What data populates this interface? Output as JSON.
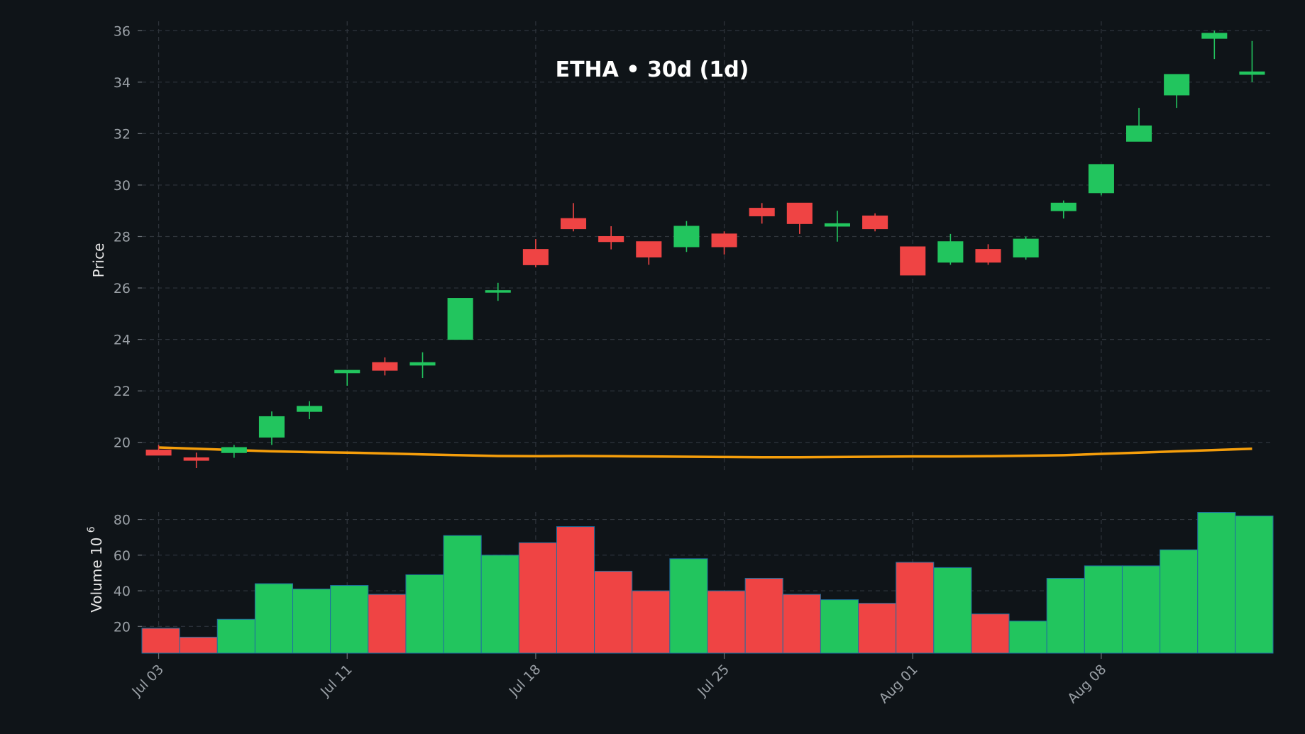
{
  "colors": {
    "background": "#0f1418",
    "up": "#22c55e",
    "down": "#ef4444",
    "ma_line": "#f59e0b",
    "grid": "#2f353c",
    "volume_edge": "#1f6fa0"
  },
  "chart_data": {
    "type": "candlestick",
    "title": "ETHA • 30d (1d)",
    "price_axis": {
      "label": "Price",
      "ylim": [
        19,
        36.2
      ],
      "ticks": [
        20,
        22,
        24,
        26,
        28,
        30,
        32,
        34,
        36
      ]
    },
    "volume_axis": {
      "label": "Volume  10",
      "exponent": "6",
      "ylim": [
        5,
        85
      ],
      "ticks": [
        20,
        40,
        60,
        80
      ]
    },
    "x_tick_labels": [
      {
        "label": "Jul 03",
        "date": "2025-07-03"
      },
      {
        "label": "Jul 11",
        "date": "2025-07-11"
      },
      {
        "label": "Jul 18",
        "date": "2025-07-18"
      },
      {
        "label": "Jul 25",
        "date": "2025-07-25"
      },
      {
        "label": "Aug 01",
        "date": "2025-08-01"
      },
      {
        "label": "Aug 08",
        "date": "2025-08-08"
      }
    ],
    "grid": true,
    "candles": [
      {
        "date": "2025-07-03",
        "open": 19.7,
        "high": 19.9,
        "low": 19.5,
        "close": 19.5,
        "volume": 19
      },
      {
        "date": "2025-07-07",
        "open": 19.4,
        "high": 19.6,
        "low": 19.0,
        "close": 19.3,
        "volume": 14
      },
      {
        "date": "2025-07-08",
        "open": 19.6,
        "high": 19.9,
        "low": 19.4,
        "close": 19.8,
        "volume": 24
      },
      {
        "date": "2025-07-09",
        "open": 20.2,
        "high": 21.2,
        "low": 19.9,
        "close": 21.0,
        "volume": 44
      },
      {
        "date": "2025-07-10",
        "open": 21.2,
        "high": 21.6,
        "low": 20.9,
        "close": 21.4,
        "volume": 41
      },
      {
        "date": "2025-07-11",
        "open": 22.7,
        "high": 22.8,
        "low": 22.2,
        "close": 22.8,
        "volume": 43
      },
      {
        "date": "2025-07-14",
        "open": 23.1,
        "high": 23.3,
        "low": 22.6,
        "close": 22.8,
        "volume": 38
      },
      {
        "date": "2025-07-15",
        "open": 23.0,
        "high": 23.5,
        "low": 22.5,
        "close": 23.1,
        "volume": 49
      },
      {
        "date": "2025-07-16",
        "open": 24.0,
        "high": 25.6,
        "low": 24.0,
        "close": 25.6,
        "volume": 71
      },
      {
        "date": "2025-07-17",
        "open": 25.9,
        "high": 26.2,
        "low": 25.5,
        "close": 25.9,
        "volume": 60
      },
      {
        "date": "2025-07-18",
        "open": 27.5,
        "high": 27.9,
        "low": 26.8,
        "close": 26.9,
        "volume": 67
      },
      {
        "date": "2025-07-21",
        "open": 28.7,
        "high": 29.3,
        "low": 28.2,
        "close": 28.3,
        "volume": 76
      },
      {
        "date": "2025-07-22",
        "open": 28.0,
        "high": 28.4,
        "low": 27.5,
        "close": 27.8,
        "volume": 51
      },
      {
        "date": "2025-07-23",
        "open": 27.8,
        "high": 27.8,
        "low": 26.9,
        "close": 27.2,
        "volume": 40
      },
      {
        "date": "2025-07-24",
        "open": 27.6,
        "high": 28.6,
        "low": 27.4,
        "close": 28.4,
        "volume": 58
      },
      {
        "date": "2025-07-25",
        "open": 28.1,
        "high": 28.2,
        "low": 27.3,
        "close": 27.6,
        "volume": 40
      },
      {
        "date": "2025-07-28",
        "open": 29.1,
        "high": 29.3,
        "low": 28.5,
        "close": 28.8,
        "volume": 47
      },
      {
        "date": "2025-07-29",
        "open": 29.3,
        "high": 29.3,
        "low": 28.1,
        "close": 28.5,
        "volume": 38
      },
      {
        "date": "2025-07-30",
        "open": 28.4,
        "high": 29.0,
        "low": 27.8,
        "close": 28.5,
        "volume": 35
      },
      {
        "date": "2025-07-31",
        "open": 28.8,
        "high": 28.9,
        "low": 28.2,
        "close": 28.3,
        "volume": 33
      },
      {
        "date": "2025-08-01",
        "open": 27.6,
        "high": 27.6,
        "low": 26.5,
        "close": 26.5,
        "volume": 56
      },
      {
        "date": "2025-08-04",
        "open": 27.0,
        "high": 28.1,
        "low": 26.9,
        "close": 27.8,
        "volume": 53
      },
      {
        "date": "2025-08-05",
        "open": 27.5,
        "high": 27.7,
        "low": 26.9,
        "close": 27.0,
        "volume": 27
      },
      {
        "date": "2025-08-06",
        "open": 27.2,
        "high": 28.0,
        "low": 27.1,
        "close": 27.9,
        "volume": 23
      },
      {
        "date": "2025-08-07",
        "open": 29.0,
        "high": 29.4,
        "low": 28.7,
        "close": 29.3,
        "volume": 47
      },
      {
        "date": "2025-08-08",
        "open": 29.7,
        "high": 30.8,
        "low": 29.6,
        "close": 30.8,
        "volume": 54
      },
      {
        "date": "2025-08-11",
        "open": 31.7,
        "high": 33.0,
        "low": 31.7,
        "close": 32.3,
        "volume": 54
      },
      {
        "date": "2025-08-12",
        "open": 33.5,
        "high": 34.3,
        "low": 33.0,
        "close": 34.3,
        "volume": 63
      },
      {
        "date": "2025-08-13",
        "open": 35.7,
        "high": 36.0,
        "low": 34.9,
        "close": 35.9,
        "volume": 84
      },
      {
        "date": "2025-08-14",
        "open": 34.3,
        "high": 35.6,
        "low": 34.0,
        "close": 34.4,
        "volume": 82
      }
    ],
    "ma_line": [
      19.8,
      19.75,
      19.7,
      19.65,
      19.62,
      19.6,
      19.57,
      19.53,
      19.5,
      19.47,
      19.46,
      19.47,
      19.46,
      19.45,
      19.44,
      19.43,
      19.42,
      19.42,
      19.43,
      19.44,
      19.45,
      19.45,
      19.46,
      19.48,
      19.5,
      19.55,
      19.6,
      19.65,
      19.7,
      19.75
    ]
  }
}
